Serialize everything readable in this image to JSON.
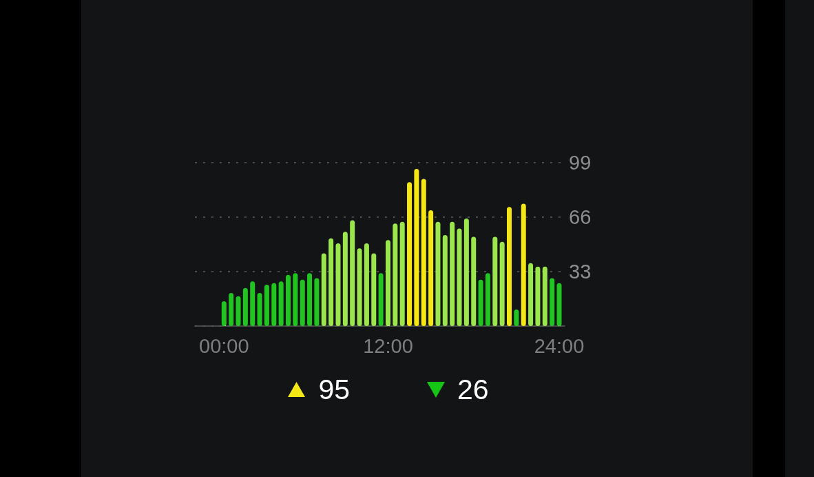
{
  "chart_data": {
    "type": "bar",
    "categories": [
      "00:00",
      null,
      null,
      null,
      null,
      null,
      null,
      null,
      null,
      null,
      null,
      null,
      null,
      null,
      null,
      null,
      null,
      null,
      null,
      null,
      null,
      null,
      null,
      "12:00",
      null,
      null,
      null,
      null,
      null,
      null,
      null,
      null,
      null,
      null,
      null,
      null,
      null,
      null,
      null,
      null,
      null,
      null,
      null,
      null,
      null,
      null,
      null,
      "24:00"
    ],
    "values": [
      15,
      20,
      18,
      23,
      27,
      20,
      25,
      26,
      27,
      31,
      32,
      28,
      32,
      29,
      44,
      53,
      50,
      57,
      64,
      47,
      50,
      44,
      32,
      52,
      62,
      63,
      87,
      95,
      89,
      70,
      63,
      55,
      63,
      59,
      65,
      54,
      28,
      32,
      54,
      51,
      72,
      10,
      74,
      38,
      36,
      36,
      29,
      26
    ],
    "colors": [
      "#22c422",
      "#22c422",
      "#22c422",
      "#22c422",
      "#22c422",
      "#22c422",
      "#22c422",
      "#22c422",
      "#22c422",
      "#22c422",
      "#22c422",
      "#22c422",
      "#22c422",
      "#22c422",
      "#9be64c",
      "#9be64c",
      "#9be64c",
      "#9be64c",
      "#9be64c",
      "#9be64c",
      "#9be64c",
      "#9be64c",
      "#22c422",
      "#9be64c",
      "#9be64c",
      "#9be64c",
      "#f5e616",
      "#f5e616",
      "#f5e616",
      "#f5e616",
      "#9be64c",
      "#9be64c",
      "#9be64c",
      "#9be64c",
      "#9be64c",
      "#9be64c",
      "#22c422",
      "#22c422",
      "#9be64c",
      "#9be64c",
      "#f5e616",
      "#22c422",
      "#f5e616",
      "#9be64c",
      "#9be64c",
      "#9be64c",
      "#22c422",
      "#22c422"
    ],
    "ylim": [
      0,
      99
    ],
    "yticks": [
      33,
      66,
      99
    ],
    "grid": "y",
    "annotations": [
      "95",
      "26"
    ]
  }
}
